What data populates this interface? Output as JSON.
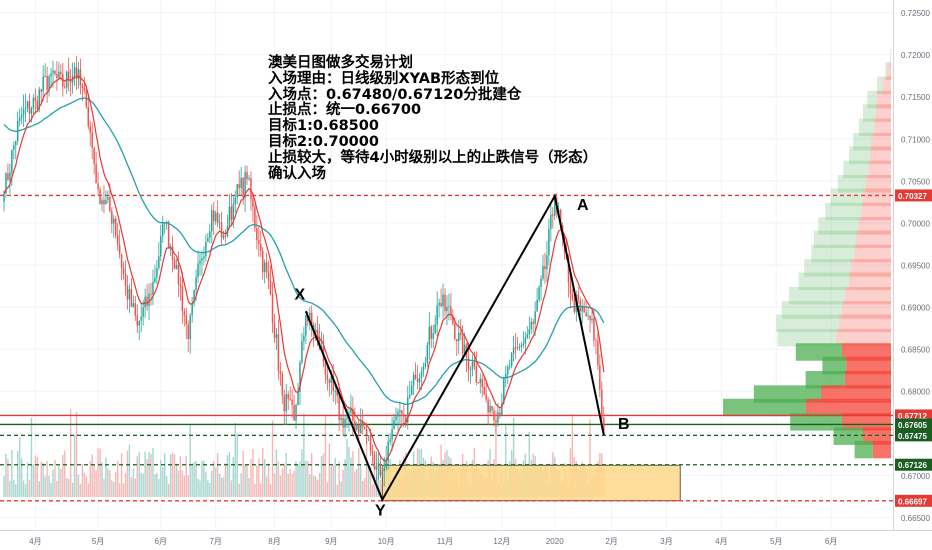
{
  "annotation_lines": [
    "澳美日图做多交易计划",
    "入场理由：日线级别XYAB形态到位",
    "入场点：0.67480/0.67120分批建仓",
    "止损点：统一0.66700",
    "目标1:0.68500",
    "目标2:0.70000",
    "止损较大，等待4小时级别以上的止跌信号（形态）",
    "确认入场"
  ],
  "colors": {
    "bull_candle": "#26a69a",
    "bear_candle": "#ef5350",
    "ema_fast": "#e53935",
    "ema_slow": "#26a0a8",
    "volume_bull": "#a5d6d0",
    "volume_bear": "#f5b7b5",
    "profile_buy": "#4caf50",
    "profile_sell": "#f44336",
    "entry_zone": "#ffd88a",
    "pattern_line": "#000000",
    "grid": "#f0f3fa"
  },
  "chart_data": {
    "type": "candlestick",
    "symbol": "AUDUSD",
    "timeframe": "1D",
    "x_ticks": [
      "4月",
      "5月",
      "6月",
      "7月",
      "8月",
      "9月",
      "10月",
      "11月",
      "12月",
      "2020",
      "2月",
      "3月",
      "4月",
      "5月",
      "6月"
    ],
    "y_ticks": [
      "0.72500",
      "0.72000",
      "0.71500",
      "0.71000",
      "0.70500",
      "0.70000",
      "0.69500",
      "0.69000",
      "0.68500",
      "0.68000",
      "0.67500",
      "0.67000",
      "0.66500"
    ],
    "ylim": [
      0.6635,
      0.7265
    ],
    "grid": true,
    "price_levels": [
      {
        "label": "0.70327",
        "value": 0.70327,
        "color": "#e53935",
        "style": "dashed"
      },
      {
        "label": "0.67712",
        "value": 0.67712,
        "color": "#e53935",
        "style": "solid"
      },
      {
        "label": "0.67605",
        "value": 0.67605,
        "color": "#1b5e20",
        "style": "solid"
      },
      {
        "label": "0.67475",
        "value": 0.67475,
        "color": "#1b5e20",
        "style": "dashed"
      },
      {
        "label": "0.67126",
        "value": 0.67126,
        "color": "#1b5e20",
        "style": "dashed"
      },
      {
        "label": "0.66697",
        "value": 0.66697,
        "color": "#e53935",
        "style": "dashed"
      }
    ],
    "pattern_points": [
      {
        "label": "X",
        "date_index": 154,
        "value": 0.6895
      },
      {
        "label": "Y",
        "date_index": 193,
        "value": 0.6671
      },
      {
        "label": "A",
        "date_index": 281,
        "value": 0.7032
      },
      {
        "label": "B",
        "date_index": 306,
        "value": 0.6748
      }
    ],
    "entry_zone": {
      "from_index": 193,
      "to_index": 345,
      "low": 0.66697,
      "high": 0.6712
    },
    "price_path": [
      [
        0,
        0.7035
      ],
      [
        8,
        0.7125
      ],
      [
        16,
        0.7145
      ],
      [
        24,
        0.7178
      ],
      [
        30,
        0.7162
      ],
      [
        36,
        0.7185
      ],
      [
        42,
        0.7138
      ],
      [
        48,
        0.704
      ],
      [
        56,
        0.7005
      ],
      [
        62,
        0.6925
      ],
      [
        68,
        0.6878
      ],
      [
        75,
        0.6915
      ],
      [
        82,
        0.7
      ],
      [
        88,
        0.695
      ],
      [
        94,
        0.6862
      ],
      [
        100,
        0.6955
      ],
      [
        106,
        0.7015
      ],
      [
        112,
        0.6985
      ],
      [
        118,
        0.703
      ],
      [
        124,
        0.7052
      ],
      [
        130,
        0.6975
      ],
      [
        136,
        0.6915
      ],
      [
        142,
        0.6795
      ],
      [
        148,
        0.6765
      ],
      [
        154,
        0.689
      ],
      [
        160,
        0.6865
      ],
      [
        166,
        0.681
      ],
      [
        172,
        0.6768
      ],
      [
        178,
        0.6765
      ],
      [
        184,
        0.6755
      ],
      [
        188,
        0.6725
      ],
      [
        193,
        0.6705
      ],
      [
        198,
        0.6755
      ],
      [
        204,
        0.677
      ],
      [
        210,
        0.6815
      ],
      [
        216,
        0.6855
      ],
      [
        222,
        0.6905
      ],
      [
        228,
        0.689
      ],
      [
        234,
        0.6845
      ],
      [
        240,
        0.683
      ],
      [
        246,
        0.679
      ],
      [
        252,
        0.6775
      ],
      [
        258,
        0.683
      ],
      [
        264,
        0.6855
      ],
      [
        270,
        0.688
      ],
      [
        276,
        0.6945
      ],
      [
        281,
        0.703
      ],
      [
        286,
        0.6965
      ],
      [
        290,
        0.691
      ],
      [
        294,
        0.6895
      ],
      [
        298,
        0.689
      ],
      [
        302,
        0.686
      ],
      [
        306,
        0.675
      ]
    ],
    "volume_profile_rows": [
      {
        "price": 0.7196,
        "buy": 0.4,
        "sell": 0.6
      },
      {
        "price": 0.718,
        "buy": 3,
        "sell": 5
      },
      {
        "price": 0.7163,
        "buy": 8,
        "sell": 12
      },
      {
        "price": 0.7146,
        "buy": 14,
        "sell": 20
      },
      {
        "price": 0.713,
        "buy": 18,
        "sell": 22
      },
      {
        "price": 0.7113,
        "buy": 22,
        "sell": 24
      },
      {
        "price": 0.7096,
        "buy": 26,
        "sell": 28
      },
      {
        "price": 0.708,
        "buy": 30,
        "sell": 30
      },
      {
        "price": 0.7063,
        "buy": 36,
        "sell": 32
      },
      {
        "price": 0.7046,
        "buy": 40,
        "sell": 36
      },
      {
        "price": 0.703,
        "buy": 46,
        "sell": 40
      },
      {
        "price": 0.7013,
        "buy": 52,
        "sell": 42
      },
      {
        "price": 0.6996,
        "buy": 58,
        "sell": 46
      },
      {
        "price": 0.698,
        "buy": 60,
        "sell": 50
      },
      {
        "price": 0.6963,
        "buy": 62,
        "sell": 52
      },
      {
        "price": 0.6946,
        "buy": 66,
        "sell": 58
      },
      {
        "price": 0.693,
        "buy": 72,
        "sell": 60
      },
      {
        "price": 0.6913,
        "buy": 80,
        "sell": 66
      },
      {
        "price": 0.6896,
        "buy": 86,
        "sell": 70
      },
      {
        "price": 0.688,
        "buy": 90,
        "sell": 74
      },
      {
        "price": 0.6863,
        "buy": 84,
        "sell": 78
      },
      {
        "price": 0.6846,
        "buy": 66,
        "sell": 70
      },
      {
        "price": 0.683,
        "buy": 34,
        "sell": 64
      },
      {
        "price": 0.6813,
        "buy": 56,
        "sell": 66
      },
      {
        "price": 0.6796,
        "buy": 96,
        "sell": 100
      },
      {
        "price": 0.678,
        "buy": 118,
        "sell": 122
      },
      {
        "price": 0.6763,
        "buy": 74,
        "sell": 70
      },
      {
        "price": 0.6746,
        "buy": 42,
        "sell": 40
      },
      {
        "price": 0.673,
        "buy": 26,
        "sell": 26
      }
    ]
  }
}
